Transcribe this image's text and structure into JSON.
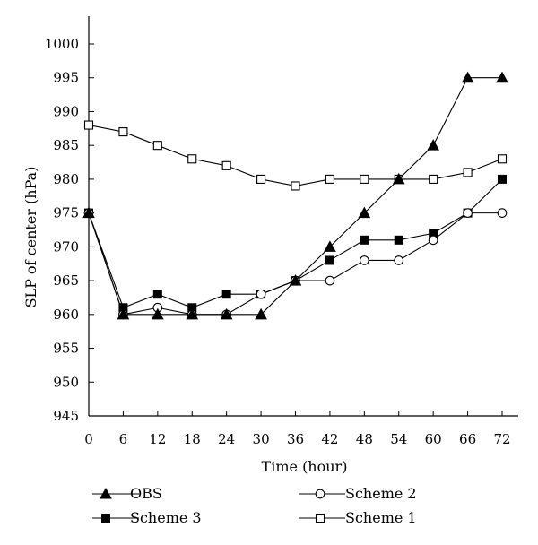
{
  "chart_data": {
    "type": "line",
    "title": "",
    "xlabel": "Time (hour)",
    "ylabel": "SLP of center (hPa)",
    "xlim": [
      0,
      72
    ],
    "ylim": [
      945,
      1000
    ],
    "x_ticks": [
      0,
      6,
      12,
      18,
      24,
      30,
      36,
      42,
      48,
      54,
      60,
      66,
      72
    ],
    "y_ticks": [
      945,
      950,
      955,
      960,
      965,
      970,
      975,
      980,
      985,
      990,
      995,
      1000
    ],
    "grid": false,
    "legend_position": "bottom",
    "x": [
      0,
      6,
      12,
      18,
      24,
      30,
      36,
      42,
      48,
      54,
      60,
      66,
      72
    ],
    "series": [
      {
        "name": "OBS",
        "marker": "filled-triangle",
        "values": [
          975,
          960,
          960,
          960,
          960,
          960,
          965,
          970,
          975,
          980,
          985,
          995,
          995
        ]
      },
      {
        "name": "Scheme 3",
        "marker": "filled-square",
        "values": [
          975,
          961,
          963,
          961,
          963,
          963,
          965,
          968,
          971,
          971,
          972,
          975,
          980
        ]
      },
      {
        "name": "Scheme 2",
        "marker": "open-circle",
        "values": [
          975,
          960,
          961,
          960,
          960,
          963,
          965,
          965,
          968,
          968,
          971,
          975,
          975
        ]
      },
      {
        "name": "Scheme 1",
        "marker": "open-square",
        "values": [
          988,
          987,
          985,
          983,
          982,
          980,
          979,
          980,
          980,
          980,
          980,
          981,
          983
        ]
      }
    ],
    "line_color": "#000000"
  }
}
